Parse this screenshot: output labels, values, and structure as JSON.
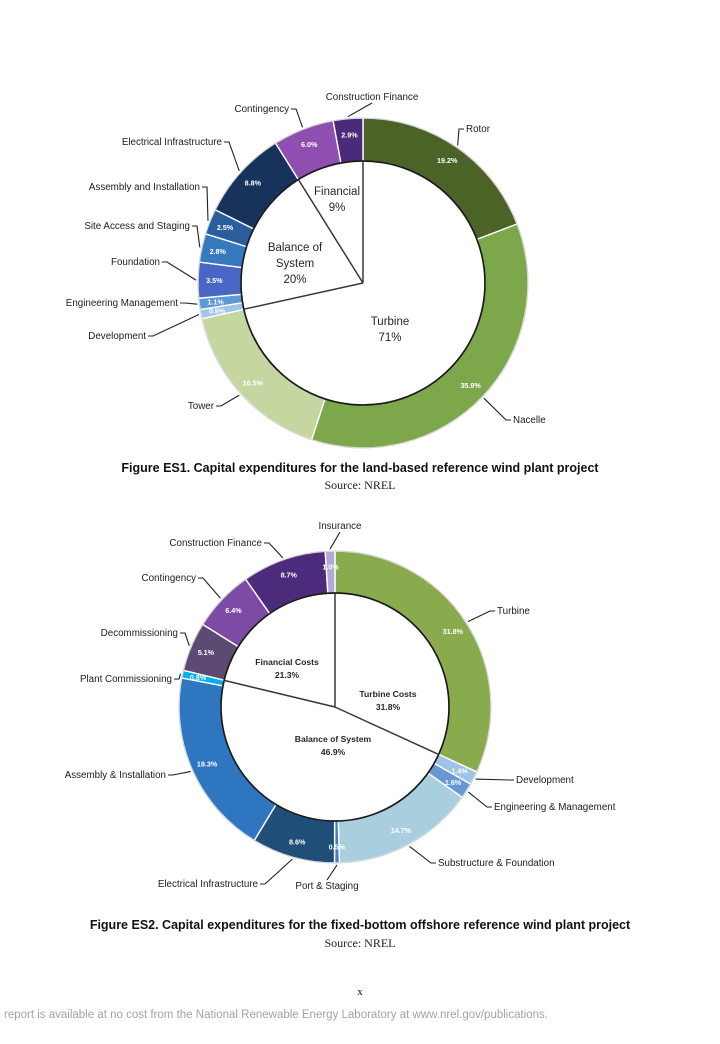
{
  "page": {
    "page_number": "x",
    "footer": "report is available at no cost from the National Renewable Energy Laboratory at www.nrel.gov/publications."
  },
  "figures": [
    {
      "caption": "Figure ES1. Capital expenditures for the land-based reference wind plant project",
      "source": "Source: NREL"
    },
    {
      "caption": "Figure ES2. Capital expenditures for the fixed-bottom offshore reference wind plant project",
      "source": "Source: NREL"
    }
  ],
  "chart_data": [
    {
      "type": "pie",
      "subtype": "donut",
      "title": "Capital expenditures for the land-based reference wind plant project",
      "units": "percent of capital expenditure",
      "slices": [
        {
          "label": "Rotor",
          "value": 19.2,
          "pct_label": "19.2%",
          "color": "#4c6328",
          "group": "Turbine",
          "label_pos": [
            466,
            47
          ],
          "anchor": "start"
        },
        {
          "label": "Nacelle",
          "value": 35.9,
          "pct_label": "35.9%",
          "color": "#7da74b",
          "group": "Turbine",
          "label_pos": [
            513,
            338
          ],
          "anchor": "start"
        },
        {
          "label": "Tower",
          "value": 16.5,
          "pct_label": "16.5%",
          "color": "#c5d6a0",
          "group": "Turbine",
          "label_pos": [
            214,
            324
          ],
          "anchor": "end"
        },
        {
          "label": "Development",
          "value": 0.9,
          "pct_label": "0.9%",
          "color": "#9fc5e8",
          "group": "Balance of System",
          "label_pos": [
            146,
            254
          ],
          "anchor": "end"
        },
        {
          "label": "Engineering Management",
          "value": 1.1,
          "pct_label": "1.1%",
          "color": "#5b9bd5",
          "group": "Balance of System",
          "label_pos": [
            178,
            221
          ],
          "anchor": "end"
        },
        {
          "label": "Foundation",
          "value": 3.5,
          "pct_label": "3.5%",
          "color": "#4a66c4",
          "group": "Balance of System",
          "label_pos": [
            160,
            180
          ],
          "anchor": "end"
        },
        {
          "label": "Site Access and Staging",
          "value": 2.8,
          "pct_label": "2.8%",
          "color": "#3779be",
          "group": "Balance of System",
          "label_pos": [
            190,
            144
          ],
          "anchor": "end"
        },
        {
          "label": "Assembly and Installation",
          "value": 2.5,
          "pct_label": "2.5%",
          "color": "#2a5d9b",
          "group": "Balance of System",
          "label_pos": [
            200,
            105
          ],
          "anchor": "end"
        },
        {
          "label": "Electrical Infrastructure",
          "value": 8.8,
          "pct_label": "8.8%",
          "color": "#17335c",
          "group": "Balance of System",
          "label_pos": [
            222,
            60
          ],
          "anchor": "end"
        },
        {
          "label": "Contingency",
          "value": 6.0,
          "pct_label": "6.0%",
          "color": "#8e4fb0",
          "group": "Financial",
          "label_pos": [
            289,
            27
          ],
          "anchor": "end"
        },
        {
          "label": "Construction Finance",
          "value": 2.9,
          "pct_label": "2.9%",
          "color": "#4b2a79",
          "group": "Financial",
          "label_pos": [
            372,
            15
          ],
          "anchor": "middle"
        }
      ],
      "groups": [
        {
          "label": "Financial",
          "value_label": "9%",
          "lines": [
            "Financial",
            "9%"
          ],
          "pos": [
            337,
            110
          ]
        },
        {
          "label": "Balance of System",
          "value_label": "20%",
          "lines": [
            "Balance of",
            "System",
            "20%"
          ],
          "pos": [
            295,
            166
          ]
        },
        {
          "label": "Turbine",
          "value_label": "71%",
          "lines": [
            "Turbine",
            "71%"
          ],
          "pos": [
            390,
            240
          ]
        }
      ],
      "layout": {
        "center": [
          363,
          198
        ],
        "outer_r": 165,
        "inner_r": 122,
        "start_angle": 0,
        "clockwise": true,
        "divider_angles": [
          0,
          257.6,
          328.0
        ],
        "group_font": 11.5,
        "group_bold": false,
        "group_lh": 16,
        "legend": "none"
      }
    },
    {
      "type": "pie",
      "subtype": "donut",
      "title": "Capital expenditures for the fixed-bottom offshore reference wind plant project",
      "units": "percent of capital expenditure",
      "slices": [
        {
          "label": "Turbine",
          "value": 31.8,
          "pct_label": "31.8%",
          "color": "#8aab4d",
          "group": "Turbine Costs",
          "label_pos": [
            497,
            104
          ],
          "anchor": "start"
        },
        {
          "label": "Development",
          "value": 1.4,
          "pct_label": "1.4%",
          "color": "#9dc3e6",
          "group": "Balance of System",
          "label_pos": [
            516,
            273
          ],
          "anchor": "start"
        },
        {
          "label": "Engineering & Management",
          "value": 1.6,
          "pct_label": "1.6%",
          "color": "#6699d4",
          "group": "Balance of System",
          "label_pos": [
            494,
            300
          ],
          "anchor": "start"
        },
        {
          "label": "Substructure & Foundation",
          "value": 14.7,
          "pct_label": "14.7%",
          "color": "#a9cfdf",
          "group": "Balance of System",
          "label_pos": [
            438,
            356
          ],
          "anchor": "start"
        },
        {
          "label": "Port & Staging",
          "value": 0.5,
          "pct_label": "0.5%",
          "color": "#3e7fc1",
          "group": "Balance of System",
          "label_pos": [
            327,
            379
          ],
          "anchor": "middle"
        },
        {
          "label": "Electrical Infrastructure",
          "value": 8.6,
          "pct_label": "8.6%",
          "color": "#1f4e79",
          "group": "Balance of System",
          "label_pos": [
            258,
            377
          ],
          "anchor": "end"
        },
        {
          "label": "Assembly & Installation",
          "value": 19.3,
          "pct_label": "19.3%",
          "color": "#2e77c0",
          "group": "Balance of System",
          "label_pos": [
            166,
            268
          ],
          "anchor": "end"
        },
        {
          "label": "Plant Commissioning",
          "value": 0.8,
          "pct_label": "0.8%",
          "color": "#00b0f0",
          "group": "Balance of System",
          "label_pos": [
            172,
            172
          ],
          "anchor": "end"
        },
        {
          "label": "Decommissioning",
          "value": 5.1,
          "pct_label": "5.1%",
          "color": "#5d4a73",
          "group": "Financial Costs",
          "label_pos": [
            178,
            126
          ],
          "anchor": "end"
        },
        {
          "label": "Contingency",
          "value": 6.4,
          "pct_label": "6.4%",
          "color": "#7d4ba5",
          "group": "Financial Costs",
          "label_pos": [
            196,
            71
          ],
          "anchor": "end"
        },
        {
          "label": "Construction Finance",
          "value": 8.7,
          "pct_label": "8.7%",
          "color": "#4c2b7c",
          "group": "Financial Costs",
          "label_pos": [
            262,
            36
          ],
          "anchor": "end"
        },
        {
          "label": "Insurance",
          "value": 1.0,
          "pct_label": "1.0%",
          "color": "#b3a9d7",
          "group": "Financial Costs",
          "label_pos": [
            340,
            19
          ],
          "anchor": "middle"
        }
      ],
      "groups": [
        {
          "label": "Financial Costs",
          "value_label": "21.3%",
          "lines": [
            "Financial Costs",
            "21.3%"
          ],
          "pos": [
            287,
            155
          ]
        },
        {
          "label": "Turbine Costs",
          "value_label": "31.8%",
          "lines": [
            "Turbine Costs",
            "31.8%"
          ],
          "pos": [
            388,
            187
          ]
        },
        {
          "label": "Balance of System",
          "value_label": "46.9%",
          "lines": [
            "Balance of System",
            "46.9%"
          ],
          "pos": [
            333,
            232
          ]
        }
      ],
      "layout": {
        "center": [
          335,
          197
        ],
        "outer_r": 156,
        "inner_r": 114,
        "start_angle": 0,
        "clockwise": true,
        "divider_angles": [
          0,
          114.6,
          283.5
        ],
        "group_font": 8.6,
        "group_bold": true,
        "group_lh": 13,
        "legend": "none"
      }
    }
  ]
}
